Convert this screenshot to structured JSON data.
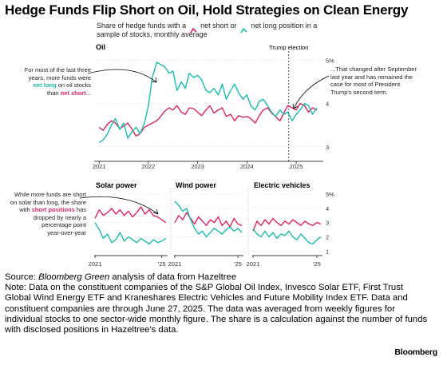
{
  "title": "Hedge Funds Flip Short on Oil, Hold Strategies on Clean Energy",
  "legend": {
    "prefix": "Share of hedge funds with a",
    "short_label": "net short or",
    "long_label": "net long position in a sample",
    "suffix": "of stocks, monthly average"
  },
  "annotations": {
    "left_top_1": "For most of the last three",
    "left_top_2": "years, more funds were",
    "left_top_3_hl": "net long",
    "left_top_3_rest": " on oil stocks",
    "left_top_4_pre": "than ",
    "left_top_4_hl": "net short",
    "left_top_4_post": "...",
    "right_top_1": "...That changed after September",
    "right_top_2": "last year and has remained the",
    "right_top_3": "case for most of President",
    "right_top_4": "Trump's second term.",
    "left_bottom_1": "While more funds are short",
    "left_bottom_2": "on solar than long, the share",
    "left_bottom_3_pre": "with ",
    "left_bottom_3_hl": "short positions",
    "left_bottom_3_post": " has",
    "left_bottom_4": "dropped by nearly a",
    "left_bottom_5": "percentage point",
    "left_bottom_6": "year-over-year",
    "trump_election": "Trump election"
  },
  "source": {
    "label": "Source: ",
    "italic": "Bloomberg Green",
    "rest": " analysis of data from Hazeltree",
    "note": "Note: Data on the constituent companies of the S&P Global Oil Index, Invesco Solar ETF, First Trust Global Wind Energy ETF and Kraneshares Electric Vehicles and Future Mobility Index ETF. Data and constituent companies are through June 27, 2025. The data was averaged from weekly figures for individual stocks to one sector-wide monthly figure. The share is a calculation against the number of funds with disclosed positions in Hazeltree's data."
  },
  "brand": "Bloomberg",
  "colors": {
    "short": "#e0245e",
    "long": "#1abcb0",
    "text": "#222222",
    "axis": "#000000",
    "grid": "#d6d6d6"
  },
  "chart_data": [
    {
      "type": "line",
      "title": "Oil",
      "x_ticks": [
        "2021",
        "2022",
        "2023",
        "2024",
        "2025"
      ],
      "y_ticks": [
        "3",
        "4",
        "5%"
      ],
      "ylim": [
        2.7,
        5.1
      ],
      "event": {
        "label": "Trump election",
        "x": 2024.85
      },
      "series": [
        {
          "name": "net short",
          "color": "#e0245e",
          "x": [
            2021.0,
            2021.08,
            2021.17,
            2021.25,
            2021.33,
            2021.42,
            2021.5,
            2021.58,
            2021.67,
            2021.75,
            2021.83,
            2021.92,
            2022.0,
            2022.08,
            2022.17,
            2022.25,
            2022.33,
            2022.42,
            2022.5,
            2022.58,
            2022.67,
            2022.75,
            2022.83,
            2022.92,
            2023.0,
            2023.08,
            2023.17,
            2023.25,
            2023.33,
            2023.42,
            2023.5,
            2023.58,
            2023.67,
            2023.75,
            2023.83,
            2023.92,
            2024.0,
            2024.08,
            2024.17,
            2024.25,
            2024.33,
            2024.42,
            2024.5,
            2024.58,
            2024.67,
            2024.75,
            2024.83,
            2024.92,
            2025.0,
            2025.08,
            2025.17,
            2025.25,
            2025.33,
            2025.42
          ],
          "values": [
            3.45,
            3.38,
            3.52,
            3.6,
            3.55,
            3.42,
            3.48,
            3.55,
            3.4,
            3.25,
            3.3,
            3.45,
            3.5,
            3.55,
            3.6,
            3.7,
            3.82,
            3.9,
            3.85,
            3.95,
            3.8,
            3.75,
            3.9,
            3.88,
            3.8,
            3.72,
            3.85,
            3.95,
            3.78,
            3.85,
            3.9,
            3.7,
            3.75,
            3.6,
            3.72,
            3.68,
            3.7,
            3.65,
            3.55,
            3.72,
            3.85,
            3.9,
            3.78,
            3.7,
            3.6,
            3.78,
            3.95,
            3.9,
            3.85,
            4.0,
            3.95,
            3.8,
            3.9,
            3.85
          ]
        },
        {
          "name": "net long",
          "color": "#1abcb0",
          "x": [
            2021.0,
            2021.08,
            2021.17,
            2021.25,
            2021.33,
            2021.42,
            2021.5,
            2021.58,
            2021.67,
            2021.75,
            2021.83,
            2021.92,
            2022.0,
            2022.08,
            2022.17,
            2022.25,
            2022.33,
            2022.42,
            2022.5,
            2022.58,
            2022.67,
            2022.75,
            2022.83,
            2022.92,
            2023.0,
            2023.08,
            2023.17,
            2023.25,
            2023.33,
            2023.42,
            2023.5,
            2023.58,
            2023.67,
            2023.75,
            2023.83,
            2023.92,
            2024.0,
            2024.08,
            2024.17,
            2024.25,
            2024.33,
            2024.42,
            2024.5,
            2024.58,
            2024.67,
            2024.75,
            2024.83,
            2024.92,
            2025.0,
            2025.08,
            2025.17,
            2025.25,
            2025.33,
            2025.42
          ],
          "values": [
            3.1,
            3.15,
            3.3,
            3.5,
            3.65,
            3.4,
            3.55,
            3.2,
            3.35,
            3.45,
            3.3,
            3.55,
            3.95,
            4.6,
            4.95,
            4.9,
            4.85,
            4.7,
            4.75,
            4.3,
            4.5,
            4.35,
            4.7,
            4.6,
            4.65,
            4.55,
            4.3,
            4.25,
            4.35,
            4.2,
            4.45,
            4.1,
            4.3,
            4.45,
            4.25,
            4.1,
            4.2,
            3.95,
            3.85,
            4.05,
            4.1,
            3.95,
            3.8,
            3.7,
            3.85,
            3.75,
            3.8,
            3.6,
            3.75,
            3.85,
            4.0,
            3.95,
            3.75,
            3.9
          ]
        }
      ]
    },
    {
      "type": "line",
      "title": "Solar power",
      "x_ticks": [
        "2021",
        "'25"
      ],
      "y_ticks": [
        "1",
        "2",
        "3",
        "4",
        "5%"
      ],
      "ylim": [
        0.8,
        5.0
      ],
      "series": [
        {
          "name": "net short",
          "color": "#e0245e",
          "x": [
            2021.0,
            2021.25,
            2021.5,
            2021.75,
            2022.0,
            2022.25,
            2022.5,
            2022.75,
            2023.0,
            2023.25,
            2023.5,
            2023.75,
            2024.0,
            2024.25,
            2024.5,
            2024.75,
            2025.0,
            2025.25
          ],
          "values": [
            3.3,
            3.9,
            3.5,
            3.7,
            4.0,
            3.6,
            3.9,
            3.5,
            3.8,
            3.4,
            3.7,
            4.1,
            3.6,
            3.9,
            3.5,
            3.4,
            3.2,
            3.0
          ]
        },
        {
          "name": "net long",
          "color": "#1abcb0",
          "x": [
            2021.0,
            2021.25,
            2021.5,
            2021.75,
            2022.0,
            2022.25,
            2022.5,
            2022.75,
            2023.0,
            2023.25,
            2023.5,
            2023.75,
            2024.0,
            2024.25,
            2024.5,
            2024.75,
            2025.0,
            2025.25
          ],
          "values": [
            3.0,
            2.5,
            1.9,
            2.2,
            1.6,
            1.8,
            2.3,
            1.7,
            2.0,
            1.8,
            1.6,
            1.9,
            1.7,
            1.5,
            1.8,
            1.6,
            1.7,
            1.9
          ]
        }
      ]
    },
    {
      "type": "line",
      "title": "Wind power",
      "x_ticks": [
        "2021",
        "'25"
      ],
      "y_ticks": [
        "1",
        "2",
        "3",
        "4",
        "5%"
      ],
      "ylim": [
        0.8,
        5.0
      ],
      "series": [
        {
          "name": "net short",
          "color": "#e0245e",
          "x": [
            2021.0,
            2021.25,
            2021.5,
            2021.75,
            2022.0,
            2022.25,
            2022.5,
            2022.75,
            2023.0,
            2023.25,
            2023.5,
            2023.75,
            2024.0,
            2024.25,
            2024.5,
            2024.75,
            2025.0,
            2025.25
          ],
          "values": [
            3.0,
            3.5,
            3.2,
            3.7,
            3.3,
            2.9,
            3.4,
            3.1,
            2.8,
            3.2,
            3.0,
            3.4,
            2.8,
            3.1,
            2.7,
            3.3,
            2.9,
            2.8
          ]
        },
        {
          "name": "net long",
          "color": "#1abcb0",
          "x": [
            2021.0,
            2021.25,
            2021.5,
            2021.75,
            2022.0,
            2022.25,
            2022.5,
            2022.75,
            2023.0,
            2023.25,
            2023.5,
            2023.75,
            2024.0,
            2024.25,
            2024.5,
            2024.75,
            2025.0,
            2025.25
          ],
          "values": [
            4.5,
            4.2,
            3.8,
            4.0,
            3.2,
            2.6,
            2.2,
            2.4,
            2.0,
            2.3,
            2.6,
            2.4,
            2.2,
            2.5,
            2.7,
            2.4,
            2.6,
            2.3
          ]
        }
      ]
    },
    {
      "type": "line",
      "title": "Electric vehicles",
      "x_ticks": [
        "2021",
        "'25"
      ],
      "y_ticks": [
        "1",
        "2",
        "3",
        "4",
        "5%"
      ],
      "ylim": [
        0.8,
        5.0
      ],
      "series": [
        {
          "name": "net short",
          "color": "#e0245e",
          "x": [
            2021.0,
            2021.25,
            2021.5,
            2021.75,
            2022.0,
            2022.25,
            2022.5,
            2022.75,
            2023.0,
            2023.25,
            2023.5,
            2023.75,
            2024.0,
            2024.25,
            2024.5,
            2024.75,
            2025.0,
            2025.25
          ],
          "values": [
            2.4,
            3.1,
            2.8,
            3.2,
            2.9,
            3.3,
            3.0,
            2.8,
            3.1,
            2.9,
            3.2,
            3.0,
            2.8,
            3.1,
            2.9,
            2.8,
            3.0,
            2.9
          ]
        },
        {
          "name": "net long",
          "color": "#1abcb0",
          "x": [
            2021.0,
            2021.25,
            2021.5,
            2021.75,
            2022.0,
            2022.25,
            2022.5,
            2022.75,
            2023.0,
            2023.25,
            2023.5,
            2023.75,
            2024.0,
            2024.25,
            2024.5,
            2024.75,
            2025.0,
            2025.25
          ],
          "values": [
            2.6,
            2.2,
            2.0,
            2.4,
            2.0,
            2.3,
            1.9,
            2.2,
            2.1,
            2.4,
            2.0,
            1.8,
            2.2,
            1.9,
            1.6,
            1.5,
            1.8,
            2.0
          ]
        }
      ]
    }
  ]
}
